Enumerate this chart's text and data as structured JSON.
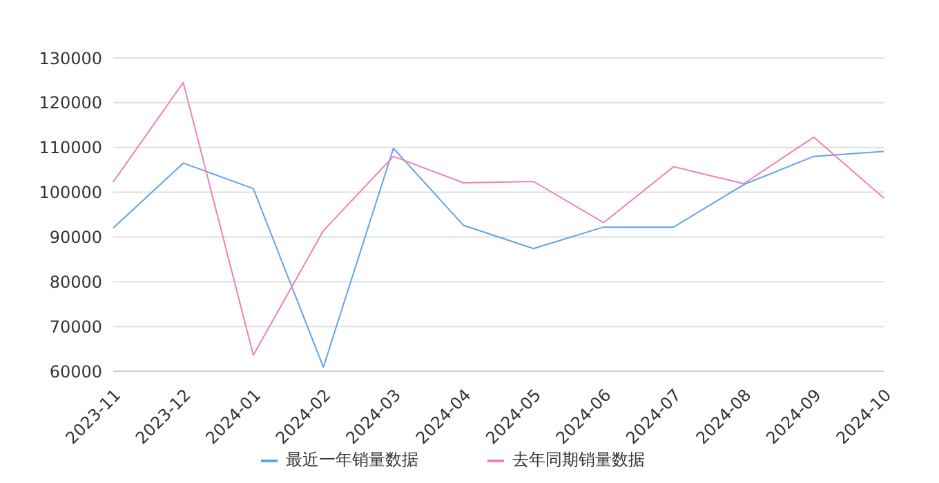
{
  "chart_data": {
    "type": "line",
    "categories": [
      "2023-11",
      "2023-12",
      "2024-01",
      "2024-02",
      "2024-03",
      "2024-04",
      "2024-05",
      "2024-06",
      "2024-07",
      "2024-08",
      "2024-09",
      "2024-10"
    ],
    "series": [
      {
        "name": "最近一年销量数据",
        "color": "#5fa3f0",
        "values": [
          92000,
          106500,
          100800,
          60900,
          109800,
          92600,
          87400,
          92200,
          92200,
          101700,
          108000,
          109100
        ]
      },
      {
        "name": "去年同期销量数据",
        "color": "#f27fb8",
        "values": [
          102300,
          124500,
          63600,
          91400,
          108000,
          102100,
          102400,
          93200,
          105700,
          101900,
          112300,
          98700
        ]
      }
    ],
    "ylim": [
      60000,
      130000
    ],
    "yticks": [
      60000,
      70000,
      80000,
      90000,
      100000,
      110000,
      120000,
      130000
    ],
    "grid": "y",
    "legend": "bottom",
    "marker": "none",
    "line_style": "solid"
  }
}
